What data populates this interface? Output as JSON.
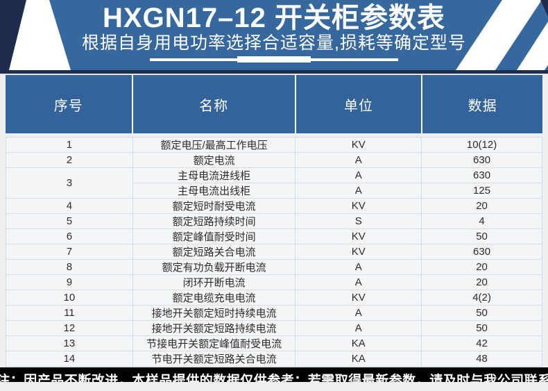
{
  "banner": {
    "title": "HXGN17–12 开关柜参数表",
    "subtitle": "根据自身用电功率选择合适容量,损耗等确定型号"
  },
  "colors": {
    "banner_blue": "#36689e",
    "corner_navy": "#1f2c4c",
    "header_blue": "#32639b",
    "row_bg": "#f4f5f7",
    "footer_black": "#000000",
    "stripe_white": "#ffffff"
  },
  "table": {
    "columns": [
      "序号",
      "名称",
      "单位",
      "数据"
    ],
    "rows": [
      {
        "no": "1",
        "name": "额定电压/最高工作电压",
        "unit": "KV",
        "value": "10(12)"
      },
      {
        "no": "2",
        "name": "额定电流",
        "unit": "A",
        "value": "630"
      },
      {
        "no": "3",
        "name": "主母电流进线柜",
        "unit": "A",
        "value": "630",
        "rowspan": 2
      },
      {
        "merged": true,
        "name": "主母电流出线柜",
        "unit": "A",
        "value": "125"
      },
      {
        "no": "4",
        "name": "额定短时耐受电流",
        "unit": "KV",
        "value": "20"
      },
      {
        "no": "5",
        "name": "额定短路持续时间",
        "unit": "S",
        "value": "4"
      },
      {
        "no": "6",
        "name": "额定峰值耐受时间",
        "unit": "KV",
        "value": "50"
      },
      {
        "no": "7",
        "name": "额定短路关合电流",
        "unit": "KV",
        "value": "630"
      },
      {
        "no": "8",
        "name": "额定有功负载开断电流",
        "unit": "A",
        "value": "20"
      },
      {
        "no": "9",
        "name": "闭环开断电流",
        "unit": "A",
        "value": "20"
      },
      {
        "no": "10",
        "name": "额定电缆充电电流",
        "unit": "KV",
        "value": "4(2)"
      },
      {
        "no": "11",
        "name": "接地开关额定短时持续电流",
        "unit": "A",
        "value": "50"
      },
      {
        "no": "12",
        "name": "接地开关额定短路持续电流",
        "unit": "A",
        "value": "50"
      },
      {
        "no": "13",
        "name": "节接电开关额定峰值耐受电流",
        "unit": "KA",
        "value": "42"
      },
      {
        "no": "14",
        "name": "节电开关额定短路关合电流",
        "unit": "KA",
        "value": "48"
      }
    ]
  },
  "footer": {
    "note": "注：因产品不断改进，本样品提供的数据仅供参考；若需取得最新参数，请及时与我公司联系"
  }
}
